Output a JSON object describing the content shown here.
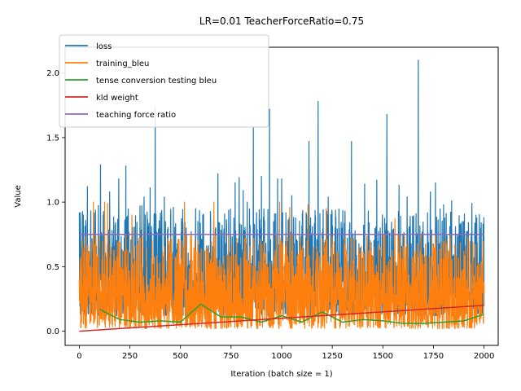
{
  "chart_data": {
    "type": "line",
    "title": "LR=0.01 TeacherForceRatio=0.75",
    "xlabel": "Iteration (batch size = 1)",
    "ylabel": "Value",
    "xlim": [
      -70,
      2070
    ],
    "ylim": [
      -0.11,
      2.2
    ],
    "xticks": [
      0,
      250,
      500,
      750,
      1000,
      1250,
      1500,
      1750,
      2000
    ],
    "yticks": [
      0.0,
      0.5,
      1.0,
      1.5,
      2.0
    ],
    "xtick_labels": [
      "0",
      "250",
      "500",
      "750",
      "1000",
      "1250",
      "1500",
      "1750",
      "2000"
    ],
    "ytick_labels": [
      "0.0",
      "0.5",
      "1.0",
      "1.5",
      "2.0"
    ],
    "grid": false,
    "legend_position": "top-left",
    "series": [
      {
        "name": "loss",
        "color": "#1f77b4",
        "x_start": 0,
        "x_end": 2000,
        "baseline_low": 0.12,
        "baseline_high": 0.75,
        "peaks": [
          {
            "x": 0,
            "y": 0.92
          },
          {
            "x": 20,
            "y": 0.9
          },
          {
            "x": 40,
            "y": 1.12
          },
          {
            "x": 105,
            "y": 1.29
          },
          {
            "x": 150,
            "y": 1.08
          },
          {
            "x": 195,
            "y": 1.18
          },
          {
            "x": 230,
            "y": 1.28
          },
          {
            "x": 300,
            "y": 0.97
          },
          {
            "x": 320,
            "y": 1.04
          },
          {
            "x": 350,
            "y": 1.11
          },
          {
            "x": 375,
            "y": 1.74
          },
          {
            "x": 420,
            "y": 1.04
          },
          {
            "x": 465,
            "y": 0.96
          },
          {
            "x": 575,
            "y": 0.95
          },
          {
            "x": 610,
            "y": 0.9
          },
          {
            "x": 685,
            "y": 1.22
          },
          {
            "x": 770,
            "y": 1.15
          },
          {
            "x": 790,
            "y": 1.19
          },
          {
            "x": 810,
            "y": 1.09
          },
          {
            "x": 830,
            "y": 1.0
          },
          {
            "x": 860,
            "y": 1.58
          },
          {
            "x": 900,
            "y": 1.2
          },
          {
            "x": 940,
            "y": 1.72
          },
          {
            "x": 980,
            "y": 1.18
          },
          {
            "x": 1000,
            "y": 1.18
          },
          {
            "x": 1050,
            "y": 1.05
          },
          {
            "x": 1135,
            "y": 1.47
          },
          {
            "x": 1180,
            "y": 1.78
          },
          {
            "x": 1230,
            "y": 1.04
          },
          {
            "x": 1345,
            "y": 1.47
          },
          {
            "x": 1410,
            "y": 1.14
          },
          {
            "x": 1470,
            "y": 1.17
          },
          {
            "x": 1520,
            "y": 1.68
          },
          {
            "x": 1580,
            "y": 1.13
          },
          {
            "x": 1620,
            "y": 1.04
          },
          {
            "x": 1675,
            "y": 2.1
          },
          {
            "x": 1735,
            "y": 1.08
          },
          {
            "x": 1760,
            "y": 1.15
          },
          {
            "x": 1800,
            "y": 0.98
          },
          {
            "x": 1840,
            "y": 1.01
          },
          {
            "x": 1940,
            "y": 0.99
          },
          {
            "x": 2000,
            "y": 0.2
          }
        ]
      },
      {
        "name": "training_bleu",
        "color": "#ff7f0e",
        "x_start": 0,
        "x_end": 2000,
        "baseline_low": 0.02,
        "baseline_high": 0.55,
        "peaks": [
          {
            "x": 70,
            "y": 1.0
          },
          {
            "x": 125,
            "y": 1.0
          },
          {
            "x": 140,
            "y": 0.99
          },
          {
            "x": 260,
            "y": 0.9
          },
          {
            "x": 520,
            "y": 1.0
          },
          {
            "x": 665,
            "y": 1.0
          },
          {
            "x": 990,
            "y": 1.0
          },
          {
            "x": 1040,
            "y": 0.96
          },
          {
            "x": 1130,
            "y": 0.98
          },
          {
            "x": 1220,
            "y": 0.95
          },
          {
            "x": 1560,
            "y": 0.87
          },
          {
            "x": 1920,
            "y": 0.73
          }
        ]
      },
      {
        "name": "tense conversion testing bleu",
        "color": "#2ca02c",
        "x": [
          100,
          200,
          300,
          400,
          500,
          600,
          700,
          800,
          900,
          1000,
          1100,
          1200,
          1300,
          1400,
          1500,
          1600,
          1700,
          1800,
          1900,
          2000
        ],
        "values": [
          0.17,
          0.09,
          0.07,
          0.08,
          0.07,
          0.21,
          0.11,
          0.11,
          0.07,
          0.12,
          0.07,
          0.15,
          0.07,
          0.09,
          0.08,
          0.06,
          0.06,
          0.07,
          0.08,
          0.13
        ]
      },
      {
        "name": "kld weight",
        "color": "#d62728",
        "x": [
          0,
          2000
        ],
        "values": [
          0.0,
          0.2
        ]
      },
      {
        "name": "teaching force ratio",
        "color": "#9467bd",
        "x": [
          0,
          2000
        ],
        "values": [
          0.75,
          0.75
        ]
      }
    ]
  }
}
